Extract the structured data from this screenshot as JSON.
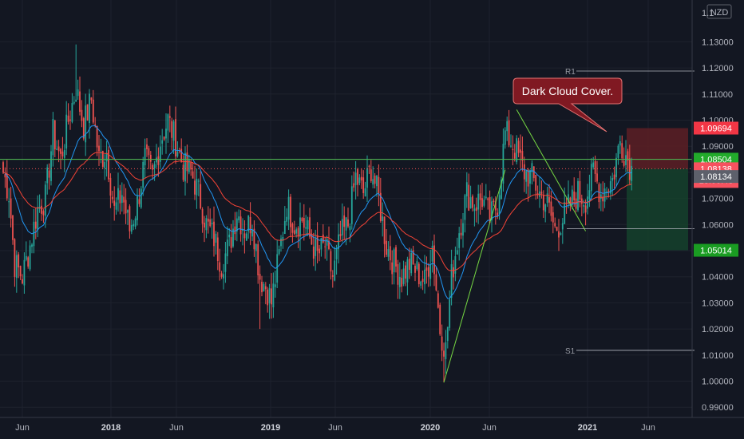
{
  "chart_data": {
    "type": "candlestick",
    "instrument_currency": "NZD",
    "y_range": [
      0.99,
      1.14
    ],
    "y_ticks": [
      "0.99000",
      "1.00000",
      "1.01000",
      "1.02000",
      "1.03000",
      "1.04000",
      "1.05000",
      "1.06000",
      "1.07000",
      "1.08000",
      "1.09000",
      "1.10000",
      "1.11000",
      "1.12000",
      "1.13000"
    ],
    "top_tick_partial": "1.1",
    "x_ticks": [
      {
        "label": "Jun",
        "bold": false
      },
      {
        "label": "2018",
        "bold": true
      },
      {
        "label": "Jun",
        "bold": false
      },
      {
        "label": "2019",
        "bold": true
      },
      {
        "label": "Jun",
        "bold": false
      },
      {
        "label": "2020",
        "bold": true
      },
      {
        "label": "Jun",
        "bold": false
      },
      {
        "label": "2021",
        "bold": true
      },
      {
        "label": "Jun",
        "bold": false
      }
    ],
    "annotation": "Dark Cloud Cover.",
    "pivots": [
      {
        "label": "R1",
        "value": 1.1188
      },
      {
        "label": "S1",
        "value": 1.0118
      }
    ],
    "support_level": 1.0584,
    "horizontal_line": 1.085,
    "price_labels": {
      "target_high": "1.09694",
      "resistance": "1.08504",
      "last_price": "1.08138",
      "countdown": "13:00:43",
      "prev_close": "1.08134",
      "stop": "1.05014"
    },
    "colors": {
      "background": "#131722",
      "up": "#26a69a",
      "down": "#ef5350",
      "ma_fast": "#2196f3",
      "ma_slow": "#f44336",
      "green_line": "#4caf50",
      "risk_zone": "#5d1e24",
      "reward_zone": "#15412b",
      "annotation_bg": "#801922",
      "annotation_border": "#e57373"
    }
  }
}
